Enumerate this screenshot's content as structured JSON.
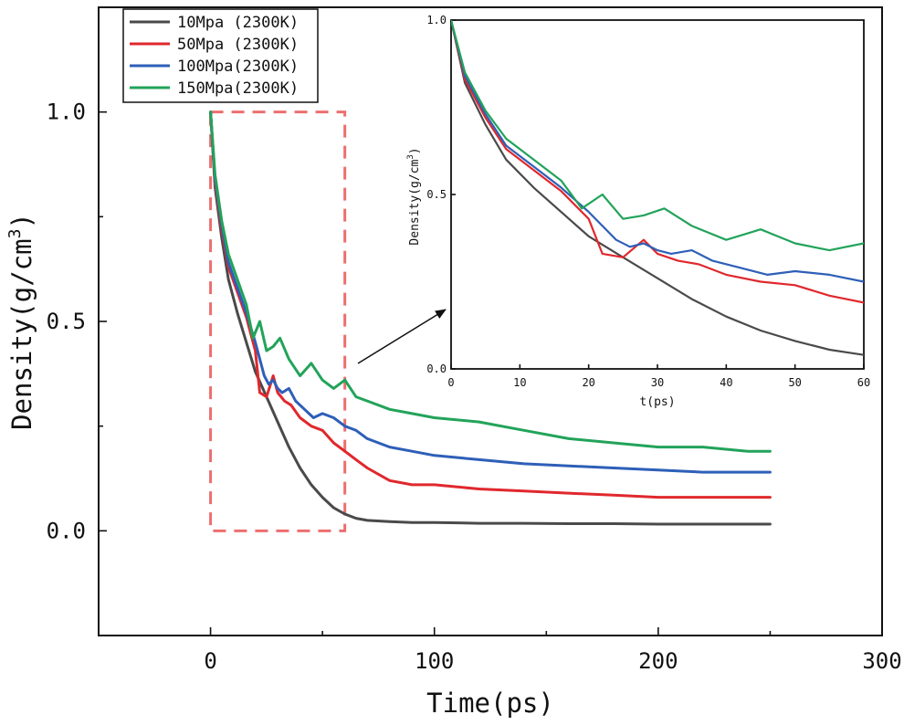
{
  "colors": {
    "10Mpa": "#4a4a4a",
    "50Mpa": "#e0282d",
    "100Mpa": "#2e5fb8",
    "150Mpa": "#22a35a",
    "highlight": "#ec6f6f"
  },
  "chart_data": {
    "type": "line",
    "xlabel": "Time(ps)",
    "ylabel": "Density(g/cm",
    "ylabel_sup": "3",
    "ylabel_close": ")",
    "xlim": [
      -50,
      300
    ],
    "ylim": [
      -0.25,
      1.25
    ],
    "xticks": [
      0,
      100,
      200,
      300
    ],
    "xtick_labels": [
      "0",
      "100",
      "200",
      "300"
    ],
    "yticks": [
      0.0,
      0.5,
      1.0
    ],
    "ytick_labels": [
      "0.0",
      "0.5",
      "1.0"
    ],
    "legend": [
      "10Mpa (2300K)",
      "50Mpa (2300K)",
      "100Mpa(2300K)",
      "150Mpa(2300K)"
    ],
    "legend_position": "top-left",
    "highlight_box": {
      "x": [
        0,
        60
      ],
      "y": [
        0,
        1.0
      ]
    },
    "series": [
      {
        "key": "10Mpa",
        "name": "10Mpa (2300K)",
        "x": [
          0,
          2,
          5,
          8,
          12,
          16,
          20,
          25,
          30,
          35,
          40,
          45,
          50,
          55,
          60,
          65,
          70,
          80,
          90,
          100,
          120,
          140,
          160,
          180,
          200,
          220,
          240,
          250
        ],
        "y": [
          1.0,
          0.82,
          0.7,
          0.6,
          0.52,
          0.45,
          0.38,
          0.32,
          0.26,
          0.2,
          0.15,
          0.11,
          0.08,
          0.055,
          0.04,
          0.03,
          0.025,
          0.022,
          0.02,
          0.02,
          0.018,
          0.018,
          0.017,
          0.017,
          0.016,
          0.016,
          0.016,
          0.016
        ]
      },
      {
        "key": "50Mpa",
        "name": "50Mpa (2300K)",
        "x": [
          0,
          2,
          5,
          8,
          12,
          16,
          20,
          22,
          25,
          28,
          30,
          33,
          36,
          40,
          45,
          50,
          55,
          60,
          65,
          70,
          80,
          90,
          100,
          120,
          140,
          160,
          180,
          200,
          220,
          240,
          250
        ],
        "y": [
          1.0,
          0.83,
          0.72,
          0.63,
          0.57,
          0.51,
          0.43,
          0.33,
          0.32,
          0.37,
          0.33,
          0.31,
          0.3,
          0.27,
          0.25,
          0.24,
          0.21,
          0.19,
          0.17,
          0.15,
          0.12,
          0.11,
          0.11,
          0.1,
          0.095,
          0.09,
          0.085,
          0.08,
          0.08,
          0.08,
          0.08
        ]
      },
      {
        "key": "100Mpa",
        "name": "100Mpa(2300K)",
        "x": [
          0,
          2,
          5,
          8,
          12,
          16,
          20,
          24,
          26,
          28,
          30,
          32,
          35,
          38,
          42,
          46,
          50,
          55,
          60,
          65,
          70,
          80,
          90,
          100,
          120,
          140,
          160,
          180,
          200,
          220,
          240,
          250
        ],
        "y": [
          1.0,
          0.84,
          0.73,
          0.64,
          0.58,
          0.52,
          0.45,
          0.37,
          0.35,
          0.36,
          0.34,
          0.33,
          0.34,
          0.31,
          0.29,
          0.27,
          0.28,
          0.27,
          0.25,
          0.24,
          0.22,
          0.2,
          0.19,
          0.18,
          0.17,
          0.16,
          0.155,
          0.15,
          0.145,
          0.14,
          0.14,
          0.14
        ]
      },
      {
        "key": "150Mpa",
        "name": "150Mpa(2300K)",
        "x": [
          0,
          2,
          5,
          8,
          12,
          16,
          19,
          22,
          25,
          28,
          31,
          35,
          40,
          45,
          50,
          55,
          60,
          65,
          70,
          80,
          90,
          100,
          120,
          140,
          160,
          180,
          200,
          220,
          240,
          250
        ],
        "y": [
          1.0,
          0.85,
          0.74,
          0.66,
          0.6,
          0.54,
          0.46,
          0.5,
          0.43,
          0.44,
          0.46,
          0.41,
          0.37,
          0.4,
          0.36,
          0.34,
          0.36,
          0.32,
          0.31,
          0.29,
          0.28,
          0.27,
          0.26,
          0.24,
          0.22,
          0.21,
          0.2,
          0.2,
          0.19,
          0.19
        ]
      }
    ],
    "inset": {
      "xlabel": "t(ps)",
      "ylabel": "Density(g/cm",
      "ylabel_sup": "3",
      "ylabel_close": ")",
      "xlim": [
        0,
        60
      ],
      "ylim": [
        0,
        1.0
      ],
      "xticks": [
        0,
        10,
        20,
        30,
        40,
        50,
        60
      ],
      "xtick_labels": [
        "0",
        "10",
        "20",
        "30",
        "40",
        "50",
        "60"
      ],
      "yticks": [
        0.0,
        0.5,
        1.0
      ],
      "ytick_labels": [
        "0.0",
        "0.5",
        "1.0"
      ]
    }
  }
}
